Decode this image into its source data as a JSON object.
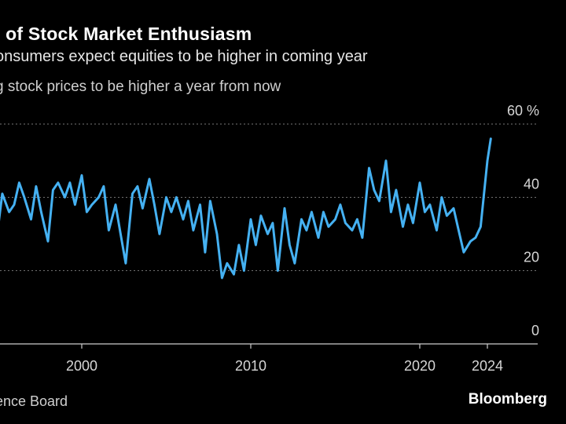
{
  "header": {
    "title": "l of Stock Market Enthusiasm",
    "subtitle": "onsumers expect equities to be higher in coming year",
    "series_label": "g stock prices to be higher a year from now"
  },
  "footer": {
    "source": "ence Board",
    "brand": "Bloomberg"
  },
  "colors": {
    "line": "#45b1f2",
    "grid": "#777777",
    "axis": "#cccccc",
    "background": "#000000"
  },
  "chart_data": {
    "type": "line",
    "ylabel_unit": "%",
    "ylim": [
      0,
      60
    ],
    "xlim": [
      1995,
      2027
    ],
    "y_ticks": [
      {
        "value": 60,
        "label": "60 %"
      },
      {
        "value": 40,
        "label": "40"
      },
      {
        "value": 20,
        "label": "20"
      },
      {
        "value": 0,
        "label": "0"
      }
    ],
    "x_ticks": [
      {
        "value": 2000,
        "label": "2000"
      },
      {
        "value": 2010,
        "label": "2010"
      },
      {
        "value": 2020,
        "label": "2020"
      },
      {
        "value": 2024,
        "label": "2024"
      }
    ],
    "grid": "horizontal dotted",
    "series": [
      {
        "x": [
          1995.0,
          1995.3,
          1995.7,
          1996.0,
          1996.3,
          1996.6,
          1997.0,
          1997.3,
          1997.6,
          1998.0,
          1998.3,
          1998.6,
          1999.0,
          1999.3,
          1999.6,
          2000.0,
          2000.3,
          2000.6,
          2001.0,
          2001.3,
          2001.6,
          2002.0,
          2002.3,
          2002.6,
          2003.0,
          2003.3,
          2003.6,
          2004.0,
          2004.3,
          2004.6,
          2005.0,
          2005.3,
          2005.6,
          2006.0,
          2006.3,
          2006.6,
          2007.0,
          2007.3,
          2007.6,
          2008.0,
          2008.3,
          2008.6,
          2009.0,
          2009.3,
          2009.6,
          2010.0,
          2010.3,
          2010.6,
          2011.0,
          2011.3,
          2011.6,
          2012.0,
          2012.3,
          2012.6,
          2013.0,
          2013.3,
          2013.6,
          2014.0,
          2014.3,
          2014.6,
          2015.0,
          2015.3,
          2015.6,
          2016.0,
          2016.3,
          2016.6,
          2017.0,
          2017.3,
          2017.6,
          2018.0,
          2018.3,
          2018.6,
          2019.0,
          2019.3,
          2019.6,
          2020.0,
          2020.3,
          2020.6,
          2021.0,
          2021.3,
          2021.6,
          2022.0,
          2022.3,
          2022.6,
          2023.0,
          2023.3,
          2023.6,
          2024.0,
          2024.2
        ],
        "values": [
          30,
          41,
          36,
          38,
          44,
          40,
          34,
          43,
          36,
          28,
          42,
          44,
          40,
          44,
          38,
          46,
          36,
          38,
          40,
          43,
          31,
          38,
          30,
          22,
          41,
          43,
          37,
          45,
          38,
          30,
          40,
          36,
          40,
          34,
          39,
          31,
          38,
          25,
          39,
          30,
          18,
          22,
          19,
          27,
          20,
          34,
          27,
          35,
          30,
          33,
          20,
          37,
          27,
          22,
          34,
          31,
          36,
          29,
          36,
          32,
          34,
          38,
          33,
          31,
          34,
          29,
          48,
          42,
          39,
          50,
          36,
          42,
          32,
          38,
          33,
          44,
          36,
          38,
          31,
          40,
          35,
          37,
          31,
          25,
          28,
          29,
          32,
          50,
          56
        ]
      }
    ]
  }
}
